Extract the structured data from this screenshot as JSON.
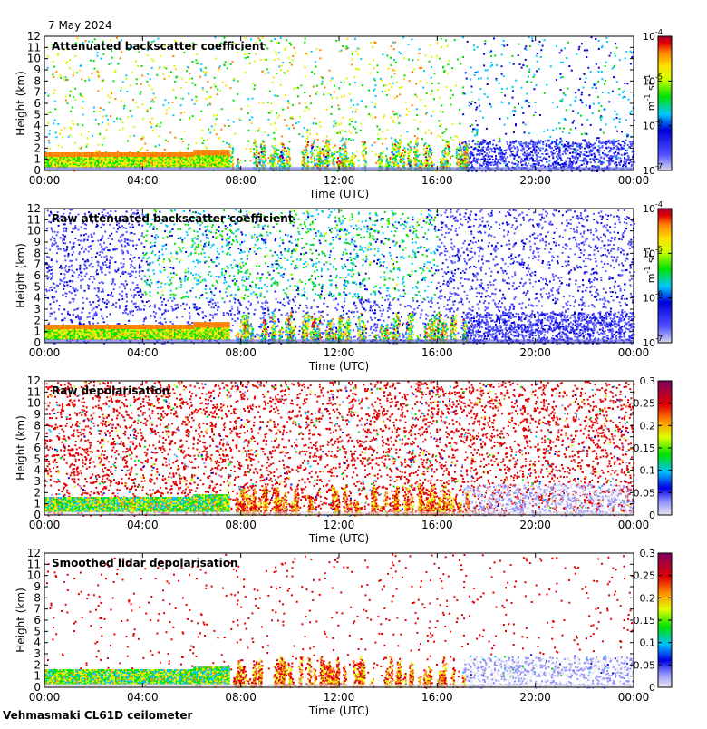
{
  "date": "7 May 2024",
  "footer": "Vehmasmaki CL61D ceilometer",
  "chart_data": [
    {
      "type": "heatmap",
      "title": "Attenuated backscatter coefficient",
      "xlabel": "Time (UTC)",
      "ylabel": "Height (km)",
      "x_ticks": [
        "00:00",
        "04:00",
        "08:00",
        "12:00",
        "16:00",
        "20:00",
        "00:00"
      ],
      "xlim": [
        0,
        24
      ],
      "ylim": [
        0,
        12
      ],
      "y_ticks": [
        0,
        1,
        2,
        3,
        4,
        5,
        6,
        7,
        8,
        9,
        10,
        11,
        12
      ],
      "colorbar": {
        "scale": "log",
        "range": [
          1e-07,
          0.0001
        ],
        "ticks": [
          "10",
          "10",
          "10",
          "10"
        ],
        "tick_exponents": [
          "-7",
          "-6",
          "-5",
          "-4"
        ],
        "unit_label": "m",
        "unit_parts": [
          "m",
          "-1",
          " sr",
          "-1"
        ]
      },
      "features": {
        "boundary_layer_top_km": 1.6,
        "boundary_layer_end_h": 7.5,
        "convective_period_h": [
          7.5,
          17.2
        ],
        "night_layer_top_km": 2.8
      },
      "grid": false
    },
    {
      "type": "heatmap",
      "title": "Raw attenuated backscatter coefficient",
      "xlabel": "Time (UTC)",
      "ylabel": "Height (km)",
      "x_ticks": [
        "00:00",
        "04:00",
        "08:00",
        "12:00",
        "16:00",
        "20:00",
        "00:00"
      ],
      "xlim": [
        0,
        24
      ],
      "ylim": [
        0,
        12
      ],
      "y_ticks": [
        0,
        1,
        2,
        3,
        4,
        5,
        6,
        7,
        8,
        9,
        10,
        11,
        12
      ],
      "colorbar": {
        "scale": "log",
        "range": [
          1e-07,
          0.0001
        ],
        "ticks": [
          "10",
          "10",
          "10",
          "10"
        ],
        "tick_exponents": [
          "-7",
          "-6",
          "-5",
          "-4"
        ],
        "unit_parts": [
          "m",
          "-1",
          " sr",
          "-1"
        ]
      },
      "grid": false
    },
    {
      "type": "heatmap",
      "title": "Raw depolarisation",
      "xlabel": "Time (UTC)",
      "ylabel": "Height (km)",
      "x_ticks": [
        "00:00",
        "04:00",
        "08:00",
        "12:00",
        "16:00",
        "20:00",
        "00:00"
      ],
      "xlim": [
        0,
        24
      ],
      "ylim": [
        0,
        12
      ],
      "y_ticks": [
        0,
        1,
        2,
        3,
        4,
        5,
        6,
        7,
        8,
        9,
        10,
        11,
        12
      ],
      "colorbar": {
        "scale": "linear",
        "range": [
          0,
          0.3
        ],
        "ticks": [
          "0",
          "0.05",
          "0.1",
          "0.15",
          "0.2",
          "0.25",
          "0.3"
        ]
      },
      "grid": false
    },
    {
      "type": "heatmap",
      "title": "Smoothed lidar depolarisation",
      "xlabel": "Time (UTC)",
      "ylabel": "Height (km)",
      "x_ticks": [
        "00:00",
        "04:00",
        "08:00",
        "12:00",
        "16:00",
        "20:00",
        "00:00"
      ],
      "xlim": [
        0,
        24
      ],
      "ylim": [
        0,
        12
      ],
      "y_ticks": [
        0,
        1,
        2,
        3,
        4,
        5,
        6,
        7,
        8,
        9,
        10,
        11,
        12
      ],
      "colorbar": {
        "scale": "linear",
        "range": [
          0,
          0.3
        ],
        "ticks": [
          "0",
          "0.05",
          "0.1",
          "0.15",
          "0.2",
          "0.25",
          "0.3"
        ]
      },
      "grid": false
    }
  ]
}
